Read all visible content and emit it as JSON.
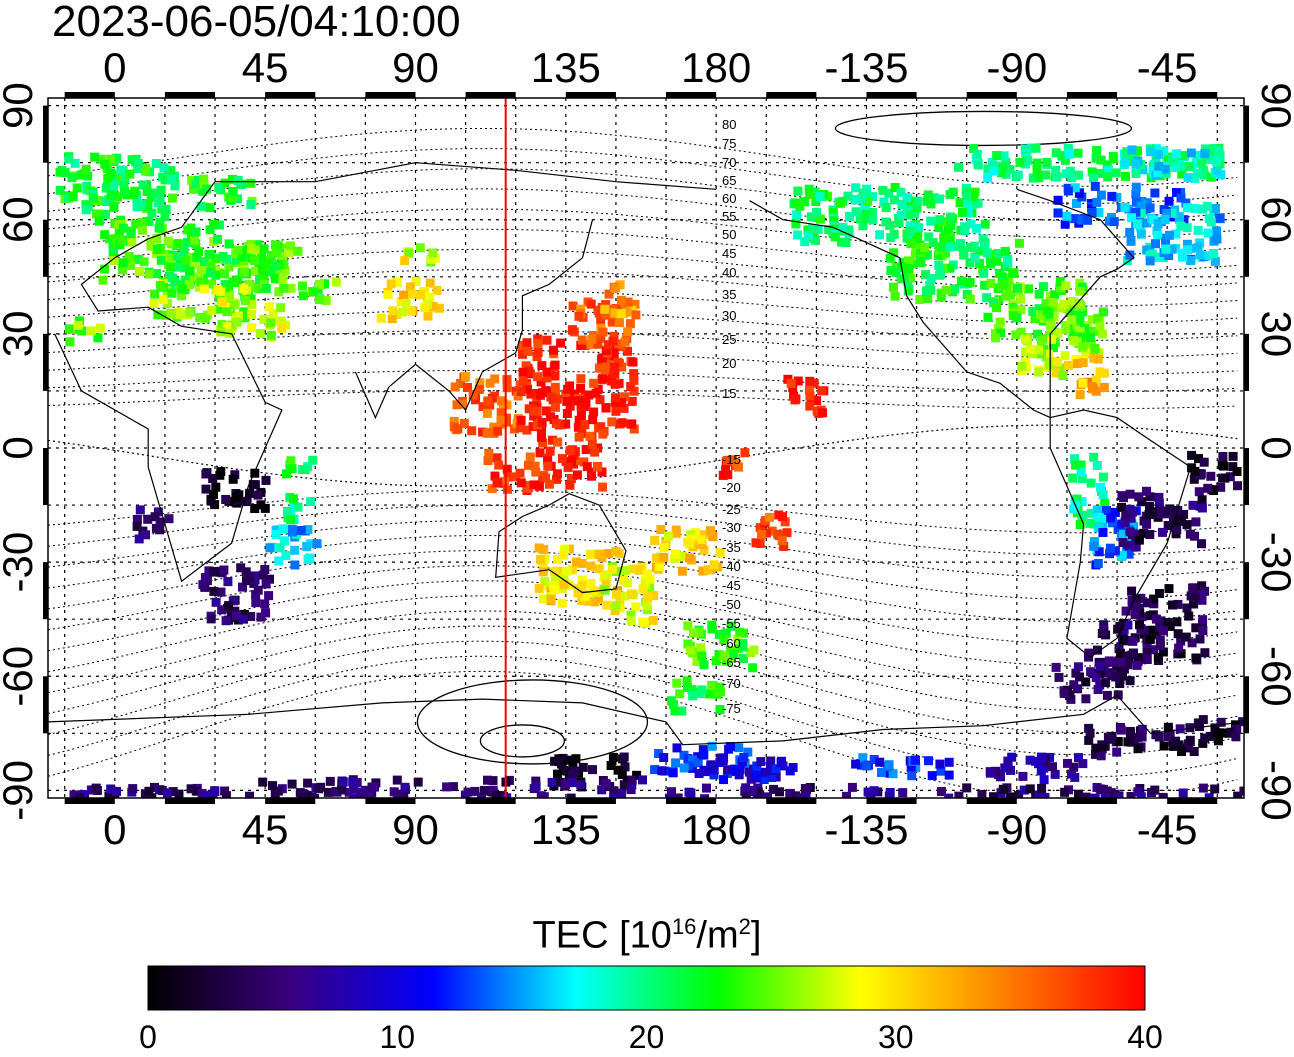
{
  "timestamp": "2023-06-05/04:10:00",
  "map": {
    "title_quantity": "TEC",
    "units": "10^16/m^2",
    "lon_ticks_top": [
      "0",
      "45",
      "90",
      "135",
      "180",
      "-135",
      "-90",
      "-45"
    ],
    "lon_ticks_bottom": [
      "0",
      "45",
      "90",
      "135",
      "180",
      "-135",
      "-90",
      "-45"
    ],
    "lat_ticks": [
      "90",
      "60",
      "30",
      "0",
      "-30",
      "-60",
      "-90"
    ],
    "lon_values": [
      0,
      45,
      90,
      135,
      180,
      225,
      270,
      315
    ],
    "lat_values": [
      90,
      60,
      30,
      0,
      -30,
      -60,
      -90
    ],
    "lon_range": [
      -20,
      338
    ],
    "lat_range": [
      -92,
      92
    ],
    "local_noon_marker_lon": 117,
    "magnetic_latitude_labels": [
      "80",
      "75",
      "70",
      "65",
      "60",
      "55",
      "50",
      "45",
      "40",
      "35",
      "30",
      "25",
      "20",
      "15",
      "-15",
      "-20",
      "-25",
      "-30",
      "-35",
      "-40",
      "-45",
      "-50",
      "-55",
      "-60",
      "-65",
      "-70",
      "-75"
    ],
    "colors": {
      "marker_line": "#ff0000",
      "frame": "#000000"
    }
  },
  "colorbar": {
    "label_prefix": "TEC  [10",
    "label_exp1": "16",
    "label_mid": "/m",
    "label_exp2": "2",
    "label_suffix": "]",
    "ticks": [
      "0",
      "10",
      "20",
      "30",
      "40"
    ],
    "range": [
      0,
      40
    ],
    "stops": [
      "#000000",
      "#3a0080",
      "#0000ff",
      "#00ffff",
      "#00ff00",
      "#ffff00",
      "#ff8000",
      "#ff0000"
    ]
  }
}
